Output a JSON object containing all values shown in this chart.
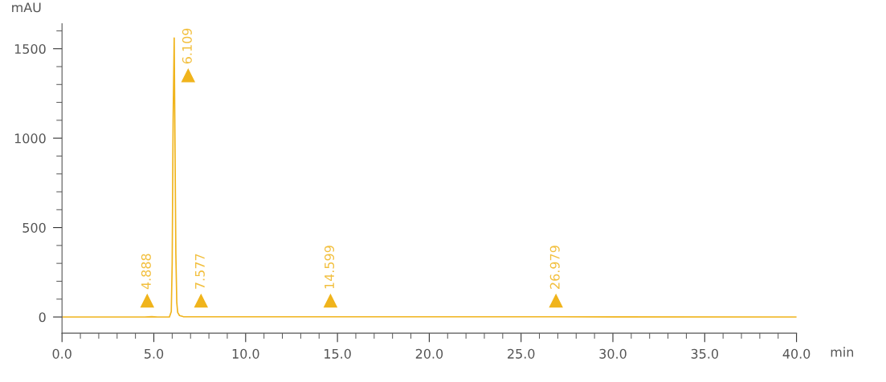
{
  "chart_data": {
    "type": "line",
    "xlabel": "min",
    "ylabel": "mAU",
    "series": [
      {
        "color": "#f0b41c",
        "x": [
          0,
          4.5,
          4.888,
          5.2,
          5.85,
          5.95,
          6.0,
          6.05,
          6.109,
          6.15,
          6.2,
          6.25,
          6.3,
          6.4,
          6.6,
          7.577,
          14.599,
          26.979,
          40
        ],
        "values": [
          0,
          0,
          2,
          0,
          0,
          30,
          300,
          1100,
          1560,
          1000,
          350,
          80,
          25,
          8,
          2,
          1,
          1,
          1,
          0
        ]
      }
    ],
    "annotations": [
      {
        "text": "4.888",
        "x": 4.64,
        "y": 90
      },
      {
        "text": "6.109",
        "x": 6.87,
        "y": 1350
      },
      {
        "text": "7.577",
        "x": 7.57,
        "y": 90
      },
      {
        "text": "14.599",
        "x": 14.62,
        "y": 90
      },
      {
        "text": "26.979",
        "x": 26.9,
        "y": 90
      }
    ],
    "xlim": [
      0,
      40
    ],
    "ylim": [
      -90,
      1640
    ],
    "xticks": [
      {
        "value": 0,
        "label": "0.0"
      },
      {
        "value": 1,
        "label": null
      },
      {
        "value": 2,
        "label": null
      },
      {
        "value": 3,
        "label": null
      },
      {
        "value": 4,
        "label": null
      },
      {
        "value": 5,
        "label": "5.0"
      },
      {
        "value": 6,
        "label": null
      },
      {
        "value": 7,
        "label": null
      },
      {
        "value": 8,
        "label": null
      },
      {
        "value": 9,
        "label": null
      },
      {
        "value": 10,
        "label": "10.0"
      },
      {
        "value": 11,
        "label": null
      },
      {
        "value": 12,
        "label": null
      },
      {
        "value": 13,
        "label": null
      },
      {
        "value": 14,
        "label": null
      },
      {
        "value": 15,
        "label": "15.0"
      },
      {
        "value": 16,
        "label": null
      },
      {
        "value": 17,
        "label": null
      },
      {
        "value": 18,
        "label": null
      },
      {
        "value": 19,
        "label": null
      },
      {
        "value": 20,
        "label": "20.0"
      },
      {
        "value": 21,
        "label": null
      },
      {
        "value": 22,
        "label": null
      },
      {
        "value": 23,
        "label": null
      },
      {
        "value": 24,
        "label": null
      },
      {
        "value": 25,
        "label": "25.0"
      },
      {
        "value": 26,
        "label": null
      },
      {
        "value": 27,
        "label": null
      },
      {
        "value": 28,
        "label": null
      },
      {
        "value": 29,
        "label": null
      },
      {
        "value": 30,
        "label": "30.0"
      },
      {
        "value": 31,
        "label": null
      },
      {
        "value": 32,
        "label": null
      },
      {
        "value": 33,
        "label": null
      },
      {
        "value": 34,
        "label": null
      },
      {
        "value": 35,
        "label": "35.0"
      },
      {
        "value": 36,
        "label": null
      },
      {
        "value": 37,
        "label": null
      },
      {
        "value": 38,
        "label": null
      },
      {
        "value": 39,
        "label": null
      },
      {
        "value": 40,
        "label": "40.0"
      }
    ],
    "yticks": [
      0,
      {
        "value": 100,
        "label": null
      },
      {
        "value": 200,
        "label": null
      },
      {
        "value": 300,
        "label": null
      },
      {
        "value": 400,
        "label": null
      },
      500,
      {
        "value": 600,
        "label": null
      },
      {
        "value": 700,
        "label": null
      },
      {
        "value": 800,
        "label": null
      },
      {
        "value": 900,
        "label": null
      },
      1000,
      {
        "value": 1100,
        "label": null
      },
      {
        "value": 1200,
        "label": null
      },
      {
        "value": 1300,
        "label": null
      },
      {
        "value": 1400,
        "label": null
      },
      1500,
      {
        "value": 1600,
        "label": null
      }
    ],
    "grid": false
  }
}
